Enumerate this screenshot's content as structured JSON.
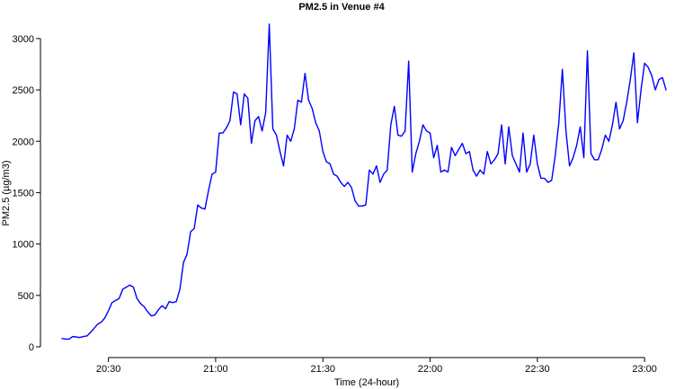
{
  "chart_data": {
    "type": "line",
    "title": "PM2.5 in Venue #4",
    "xlabel": "Time (24-hour)",
    "ylabel": "PM2.5 (µg/m3)",
    "xlim": [
      "20:13",
      "23:07"
    ],
    "ylim": [
      0,
      3200
    ],
    "x_ticks": [
      "20:30",
      "21:00",
      "21:30",
      "22:00",
      "22:30",
      "23:00"
    ],
    "y_ticks": [
      0,
      500,
      1000,
      1500,
      2000,
      2500,
      3000
    ],
    "grid": false,
    "legend": "none",
    "colors": {
      "line": "#0000ff",
      "axis": "#000000",
      "background": "#ffffff"
    },
    "series": [
      {
        "x": [
          "20:17",
          "20:18",
          "20:19",
          "20:20",
          "20:21",
          "20:22",
          "20:23",
          "20:24",
          "20:25",
          "20:26",
          "20:27",
          "20:28",
          "20:29",
          "20:30",
          "20:31",
          "20:32",
          "20:33",
          "20:34",
          "20:35",
          "20:36",
          "20:37",
          "20:38",
          "20:39",
          "20:40",
          "20:41",
          "20:42",
          "20:43",
          "20:44",
          "20:45",
          "20:46",
          "20:47",
          "20:48",
          "20:49",
          "20:50",
          "20:51",
          "20:52",
          "20:53",
          "20:54",
          "20:55",
          "20:56",
          "20:57",
          "20:58",
          "20:59",
          "21:00",
          "21:01",
          "21:02",
          "21:03",
          "21:04",
          "21:05",
          "21:06",
          "21:07",
          "21:08",
          "21:09",
          "21:10",
          "21:11",
          "21:12",
          "21:13",
          "21:14",
          "21:15",
          "21:16",
          "21:17",
          "21:18",
          "21:19",
          "21:20",
          "21:21",
          "21:22",
          "21:23",
          "21:24",
          "21:25",
          "21:26",
          "21:27",
          "21:28",
          "21:29",
          "21:30",
          "21:31",
          "21:32",
          "21:33",
          "21:34",
          "21:35",
          "21:36",
          "21:37",
          "21:38",
          "21:39",
          "21:40",
          "21:41",
          "21:42",
          "21:43",
          "21:44",
          "21:45",
          "21:46",
          "21:47",
          "21:48",
          "21:49",
          "21:50",
          "21:51",
          "21:52",
          "21:53",
          "21:54",
          "21:55",
          "21:56",
          "21:57",
          "21:58",
          "21:59",
          "22:00",
          "22:01",
          "22:02",
          "22:03",
          "22:04",
          "22:05",
          "22:06",
          "22:07",
          "22:08",
          "22:09",
          "22:10",
          "22:11",
          "22:12",
          "22:13",
          "22:14",
          "22:15",
          "22:16",
          "22:17",
          "22:18",
          "22:19",
          "22:20",
          "22:21",
          "22:22",
          "22:23",
          "22:24",
          "22:25",
          "22:26",
          "22:27",
          "22:28",
          "22:29",
          "22:30",
          "22:31",
          "22:32",
          "22:33",
          "22:34",
          "22:35",
          "22:36",
          "22:37",
          "22:38",
          "22:39",
          "22:40",
          "22:41",
          "22:42",
          "22:43",
          "22:44",
          "22:45",
          "22:46",
          "22:47",
          "22:48",
          "22:49",
          "22:50",
          "22:51",
          "22:52",
          "22:53",
          "22:54",
          "22:55",
          "22:56",
          "22:57",
          "22:58",
          "22:59",
          "23:00",
          "23:01",
          "23:02",
          "23:03",
          "23:04",
          "23:05",
          "23:06"
        ],
        "values": [
          80,
          75,
          75,
          100,
          95,
          90,
          100,
          105,
          140,
          180,
          220,
          240,
          280,
          350,
          430,
          450,
          470,
          560,
          580,
          600,
          580,
          470,
          420,
          390,
          340,
          300,
          310,
          360,
          400,
          370,
          440,
          430,
          440,
          560,
          820,
          900,
          1120,
          1150,
          1380,
          1350,
          1340,
          1520,
          1680,
          1700,
          2080,
          2080,
          2130,
          2200,
          2480,
          2460,
          2160,
          2460,
          2420,
          1980,
          2200,
          2240,
          2100,
          2280,
          3140,
          2120,
          2060,
          1900,
          1760,
          2060,
          2000,
          2120,
          2400,
          2380,
          2660,
          2400,
          2320,
          2180,
          2100,
          1900,
          1800,
          1780,
          1680,
          1660,
          1600,
          1560,
          1600,
          1550,
          1420,
          1370,
          1370,
          1380,
          1720,
          1680,
          1760,
          1600,
          1680,
          1720,
          2160,
          2340,
          2060,
          2050,
          2100,
          2780,
          1700,
          1880,
          2000,
          2160,
          2100,
          2080,
          1840,
          1960,
          1700,
          1720,
          1700,
          1940,
          1860,
          1920,
          1980,
          1880,
          1900,
          1720,
          1660,
          1720,
          1680,
          1900,
          1780,
          1820,
          1880,
          2160,
          1780,
          2140,
          1860,
          1780,
          1700,
          2080,
          1700,
          1780,
          2060,
          1780,
          1640,
          1640,
          1600,
          1620,
          1860,
          2180,
          2700,
          2100,
          1760,
          1840,
          1960,
          2140,
          1840,
          2880,
          1880,
          1820,
          1820,
          1920,
          2060,
          2000,
          2160,
          2380,
          2120,
          2200,
          2380,
          2600,
          2860,
          2180,
          2500,
          2760,
          2720,
          2640,
          2500,
          2600,
          2620,
          2500
        ]
      }
    ]
  }
}
